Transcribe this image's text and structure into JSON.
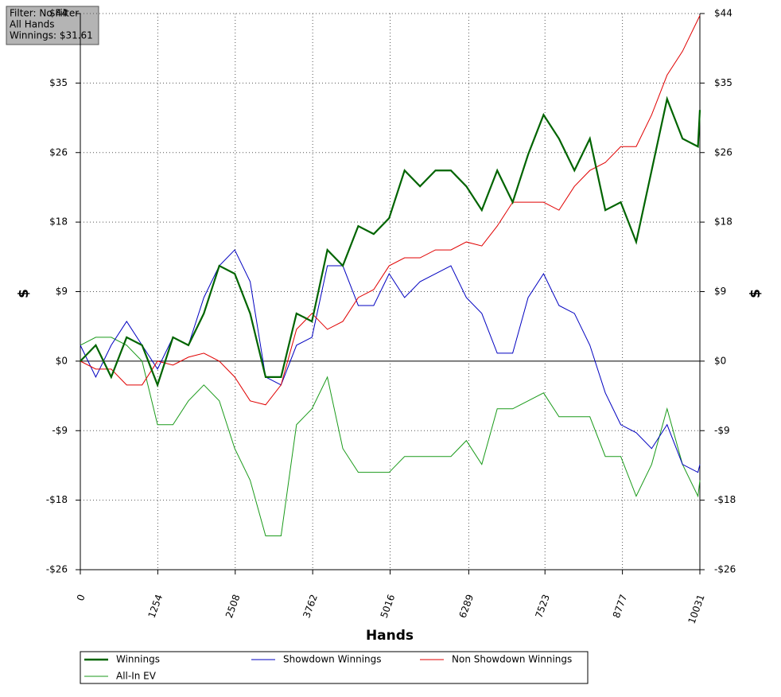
{
  "info": [
    "Filter: No Filter",
    "All Hands",
    "Winnings: $31.61"
  ],
  "chart_data": {
    "type": "line",
    "xlabel": "Hands",
    "ylabel": "$",
    "x": [
      0,
      250,
      500,
      750,
      1000,
      1250,
      1500,
      1750,
      2000,
      2250,
      2500,
      2750,
      3000,
      3250,
      3500,
      3750,
      4000,
      4250,
      4500,
      4750,
      5000,
      5250,
      5500,
      5750,
      6000,
      6250,
      6500,
      6750,
      7000,
      7250,
      7500,
      7750,
      8000,
      8250,
      8500,
      8750,
      9000,
      9250,
      9500,
      9750,
      10000,
      10031
    ],
    "xlim": [
      0,
      10031
    ],
    "xticks": [
      0,
      1254,
      2508,
      3762,
      5016,
      6289,
      7523,
      8777,
      10031
    ],
    "ylim": [
      -26.25,
      43.75
    ],
    "yticks": [
      {
        "value": -26.25,
        "label": "-$26"
      },
      {
        "value": -17.5,
        "label": "-$18"
      },
      {
        "value": -8.75,
        "label": "-$9"
      },
      {
        "value": 0,
        "label": "$0"
      },
      {
        "value": 8.75,
        "label": "$9"
      },
      {
        "value": 17.5,
        "label": "$18"
      },
      {
        "value": 26.25,
        "label": "$26"
      },
      {
        "value": 35,
        "label": "$35"
      },
      {
        "value": 43.75,
        "label": "$44"
      }
    ],
    "grid": true,
    "series": [
      {
        "name": "Winnings",
        "color": "#006400",
        "values": [
          0,
          2,
          -2,
          3,
          2,
          -3,
          3,
          2,
          6,
          12,
          11,
          6,
          -2,
          -2,
          6,
          5,
          14,
          12,
          17,
          16,
          18,
          24,
          22,
          24,
          24,
          22,
          19,
          24,
          20,
          26,
          31,
          28,
          24,
          28,
          19,
          20,
          15,
          24,
          33,
          28,
          27,
          31.61
        ]
      },
      {
        "name": "Showdown Winnings",
        "color": "#0000c0",
        "values": [
          2,
          -2,
          2,
          5,
          2,
          -1,
          3,
          2,
          8,
          12,
          14,
          10,
          -2,
          -3,
          2,
          3,
          12,
          12,
          7,
          7,
          11,
          8,
          10,
          11,
          12,
          8,
          6,
          1,
          1,
          8,
          11,
          7,
          6,
          2,
          -4,
          -8,
          -9,
          -11,
          -8,
          -13,
          -14,
          -13
        ]
      },
      {
        "name": "Non Showdown Winnings",
        "color": "#e00000",
        "values": [
          0,
          -1,
          -1,
          -3,
          -3,
          0,
          -0.5,
          0.5,
          1,
          0,
          -2,
          -5,
          -5.5,
          -3,
          4,
          6,
          4,
          5,
          8,
          9,
          12,
          13,
          13,
          14,
          14,
          15,
          14.5,
          17,
          20,
          20,
          20,
          19,
          22,
          24,
          25,
          27,
          27,
          31,
          36,
          39,
          43,
          43.5
        ]
      },
      {
        "name": "All-In EV",
        "color": "#1a9a1a",
        "values": [
          2,
          3,
          3,
          2,
          0,
          -8,
          -8,
          -5,
          -3,
          -5,
          -11,
          -15,
          -22,
          -22,
          -8,
          -6,
          -2,
          -11,
          -14,
          -14,
          -14,
          -12,
          -12,
          -12,
          -12,
          -10,
          -13,
          -6,
          -6,
          -5,
          -4,
          -7,
          -7,
          -7,
          -12,
          -12,
          -17,
          -13,
          -6,
          -13,
          -17,
          -15
        ]
      }
    ]
  }
}
